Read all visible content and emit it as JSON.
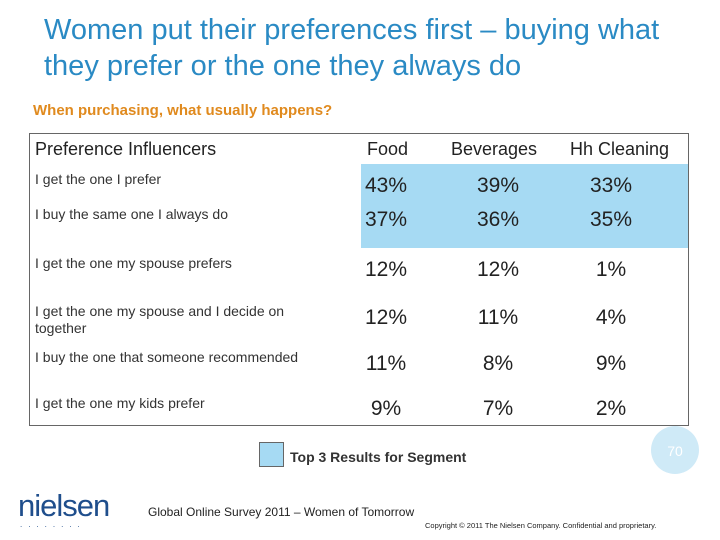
{
  "title": "Women put their preferences first – buying what they prefer or the one they always do",
  "subtitle": "When purchasing, what usually happens?",
  "table": {
    "headers": [
      "Preference Influencers",
      "Food",
      "Beverages",
      "Hh Cleaning"
    ],
    "rows": [
      {
        "label": "I get the one I prefer",
        "values": [
          "43%",
          "39%",
          "33%"
        ]
      },
      {
        "label": "I buy the same one I always do",
        "values": [
          "37%",
          "36%",
          "35%"
        ]
      },
      {
        "label": "I get the one my spouse prefers",
        "values": [
          "12%",
          "12%",
          "1%"
        ]
      },
      {
        "label": "I get the one my spouse and I decide on together",
        "values": [
          "12%",
          "11%",
          "4%"
        ]
      },
      {
        "label": "I buy the one that someone recommended",
        "values": [
          "11%",
          "8%",
          "9%"
        ]
      },
      {
        "label": "I get the one my kids prefer",
        "values": [
          "9%",
          "7%",
          "2%"
        ]
      }
    ]
  },
  "legend": {
    "label": "Top 3 Results for Segment",
    "color": "#a6daf3"
  },
  "page_number": "70",
  "logo": {
    "text": "nielsen",
    "dots": "........"
  },
  "footer_note": "Global Online Survey 2011 – Women of Tomorrow",
  "copyright": "Copyright © 2011 The Nielsen Company. Confidential and proprietary.",
  "colors": {
    "title": "#2a8ac4",
    "subtitle": "#e08a1e",
    "highlight": "#a6daf3",
    "logo": "#1f4e8c"
  }
}
